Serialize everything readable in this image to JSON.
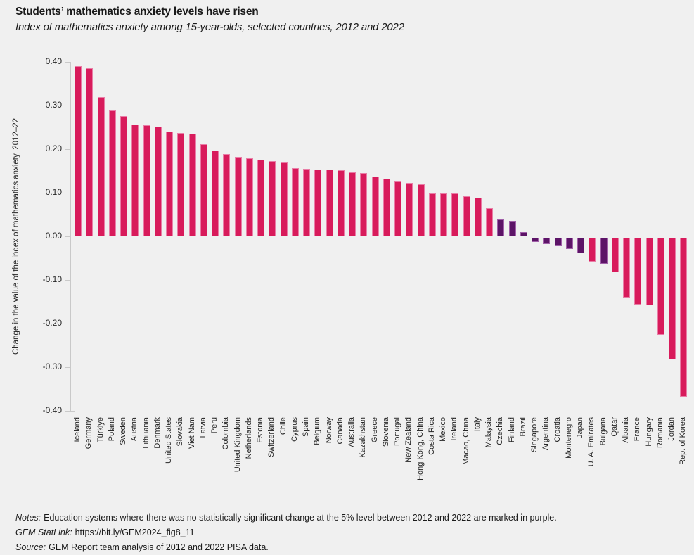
{
  "header": {
    "title": "Students’ mathematics anxiety levels have risen",
    "subtitle": "Index of mathematics anxiety among 15-year-olds, selected countries, 2012 and 2022"
  },
  "chart_data": {
    "type": "bar",
    "title": "Students’ mathematics anxiety levels have risen",
    "subtitle": "Index of mathematics anxiety among 15-year-olds, selected countries, 2012 and 2022",
    "ylabel": "Change in the value of the index of mathematics anxiety, 2012–22",
    "ylim": [
      -0.4,
      0.4
    ],
    "yticks": [
      "0.40",
      "0.30",
      "0.20",
      "0.10",
      "0.00",
      "-0.10",
      "-0.20",
      "-0.30",
      "-0.40"
    ],
    "grid": false,
    "legend": "none",
    "categories": [
      "Iceland",
      "Germany",
      "Türkiye",
      "Poland",
      "Sweden",
      "Austria",
      "Lithuania",
      "Denmark",
      "United States",
      "Slovakia",
      "Viet Nam",
      "Latvia",
      "Peru",
      "Colombia",
      "United Kingdom",
      "Netherlands",
      "Estonia",
      "Switzerland",
      "Chile",
      "Cyprus",
      "Spain",
      "Belgium",
      "Norway",
      "Canada",
      "Australia",
      "Kazakhstan",
      "Greece",
      "Slovenia",
      "Portugal",
      "New Zealand",
      "Hong Kong, China",
      "Costa Rica",
      "Mexico",
      "Ireland",
      "Macao, China",
      "Italy",
      "Malaysia",
      "Czechia",
      "Finland",
      "Brazil",
      "Singapore",
      "Argentina",
      "Croatia",
      "Montenegro",
      "Japan",
      "U. A. Emirates",
      "Bulgaria",
      "Qatar",
      "Albania",
      "France",
      "Hungary",
      "Romania",
      "Jordan",
      "Rep. of Korea"
    ],
    "values": [
      0.391,
      0.386,
      0.32,
      0.288,
      0.276,
      0.257,
      0.255,
      0.251,
      0.241,
      0.237,
      0.235,
      0.212,
      0.196,
      0.189,
      0.183,
      0.179,
      0.176,
      0.173,
      0.17,
      0.156,
      0.155,
      0.154,
      0.153,
      0.151,
      0.147,
      0.145,
      0.137,
      0.133,
      0.126,
      0.123,
      0.119,
      0.099,
      0.098,
      0.098,
      0.092,
      0.089,
      0.065,
      0.039,
      0.036,
      0.009,
      -0.009,
      -0.015,
      -0.02,
      -0.025,
      -0.036,
      -0.055,
      -0.059,
      -0.079,
      -0.137,
      -0.153,
      -0.155,
      -0.223,
      -0.279,
      -0.365
    ],
    "not_significant": [
      "Czechia",
      "Finland",
      "Brazil",
      "Singapore",
      "Argentina",
      "Croatia",
      "Montenegro",
      "Japan",
      "Bulgaria"
    ],
    "colors": {
      "background": "#F0F0F0",
      "significant_change": "#D81B5B",
      "no_significant_change": "#5C1467",
      "axis": "#C9C9C9"
    }
  },
  "footer": {
    "lines": [
      {
        "label": "Notes:",
        "text": "Education systems where there was no statistically significant change at the 5% level between 2012 and 2022 are marked in purple."
      },
      {
        "label": "GEM StatLink:",
        "text": "https://bit.ly/GEM2024_fig8_11"
      },
      {
        "label": "Source:",
        "text": "GEM Report team analysis of 2012 and 2022 PISA data."
      }
    ]
  }
}
